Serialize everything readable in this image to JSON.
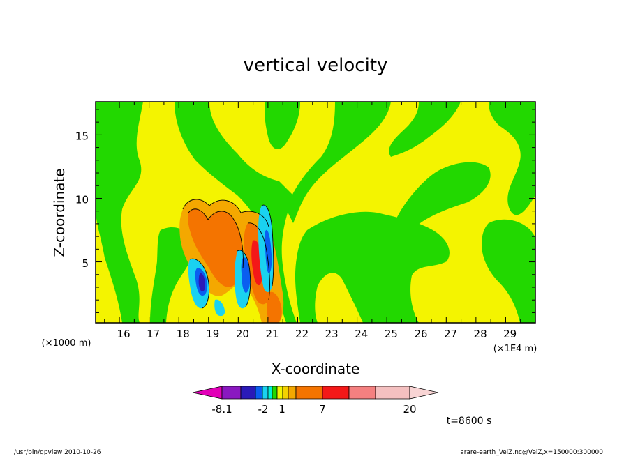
{
  "chart_data": {
    "type": "heatmap",
    "title": "vertical velocity",
    "xlabel": "X-coordinate",
    "ylabel": "Z-coordinate",
    "x_unit_note": "(×1E4 m)",
    "y_unit_note": "(×1000 m)",
    "x_ticks": [
      "16",
      "17",
      "18",
      "19",
      "20",
      "21",
      "22",
      "23",
      "24",
      "25",
      "26",
      "27",
      "28",
      "29"
    ],
    "y_ticks": [
      "5",
      "10",
      "15"
    ],
    "xlim": [
      15.2,
      30
    ],
    "ylim": [
      0.2,
      17.6
    ],
    "colorbar": {
      "colors": [
        "#e200b8",
        "#8a18c0",
        "#2a1ab8",
        "#0a5ef0",
        "#1ad2f0",
        "#00f2d8",
        "#22d800",
        "#f4f400",
        "#f4d200",
        "#f4a800",
        "#f47400",
        "#f41818",
        "#f48080",
        "#f4c0c0",
        "#f8d4d4"
      ],
      "tick_labels": [
        "-8.1",
        "-2",
        "1",
        "7",
        "20"
      ]
    },
    "time_label": "t=8600 s"
  },
  "footer": {
    "left": "/usr/bin/gpview   2010-10-26",
    "right": "arare-earth_VelZ.nc@VelZ,x=150000:300000"
  }
}
